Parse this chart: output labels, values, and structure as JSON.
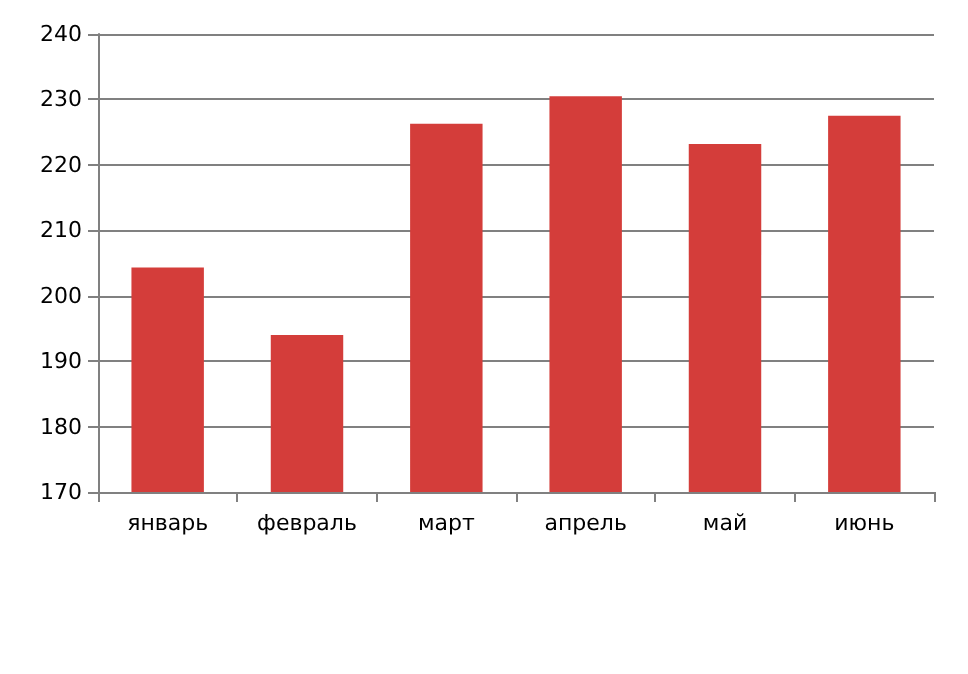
{
  "chart_data": {
    "type": "bar",
    "categories": [
      "январь",
      "февраль",
      "март",
      "апрель",
      "май",
      "июнь"
    ],
    "values": [
      204.3,
      194.0,
      226.3,
      230.5,
      223.2,
      227.5
    ],
    "color": "#d43d3a",
    "ylim": [
      170,
      240
    ],
    "yticks": [
      170,
      180,
      190,
      200,
      210,
      220,
      230,
      240
    ],
    "grid": "y"
  }
}
